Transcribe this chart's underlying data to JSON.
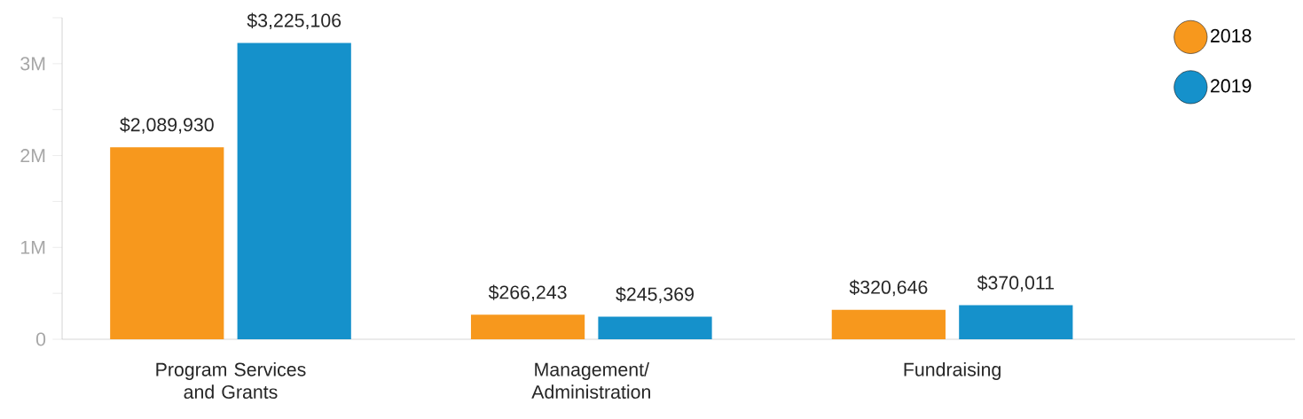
{
  "chart_data": {
    "type": "bar",
    "categories": [
      "Program Services and Grants",
      "Management/ Administration",
      "Fundraising"
    ],
    "series": [
      {
        "name": "2018",
        "color": "#f7981d",
        "values": [
          2089930,
          266243,
          320646
        ],
        "value_labels": [
          "$2,089,930",
          "$266,243",
          "$320,646"
        ]
      },
      {
        "name": "2019",
        "color": "#1591cb",
        "values": [
          3225106,
          245369,
          370011
        ],
        "value_labels": [
          "$3,225,106",
          "$245,369",
          "$370,011"
        ]
      }
    ],
    "ylim": [
      0,
      3500000
    ],
    "yticks": [
      0,
      {
        "value": 500000,
        "label": null
      },
      {
        "value": 1000000,
        "label": "1M"
      },
      {
        "value": 1500000,
        "label": null
      },
      {
        "value": 2000000,
        "label": "2M"
      },
      {
        "value": 2500000,
        "label": null
      },
      {
        "value": 3000000,
        "label": "3M"
      },
      {
        "value": 3500000,
        "label": null
      }
    ],
    "grid": false,
    "legend": "top right"
  }
}
